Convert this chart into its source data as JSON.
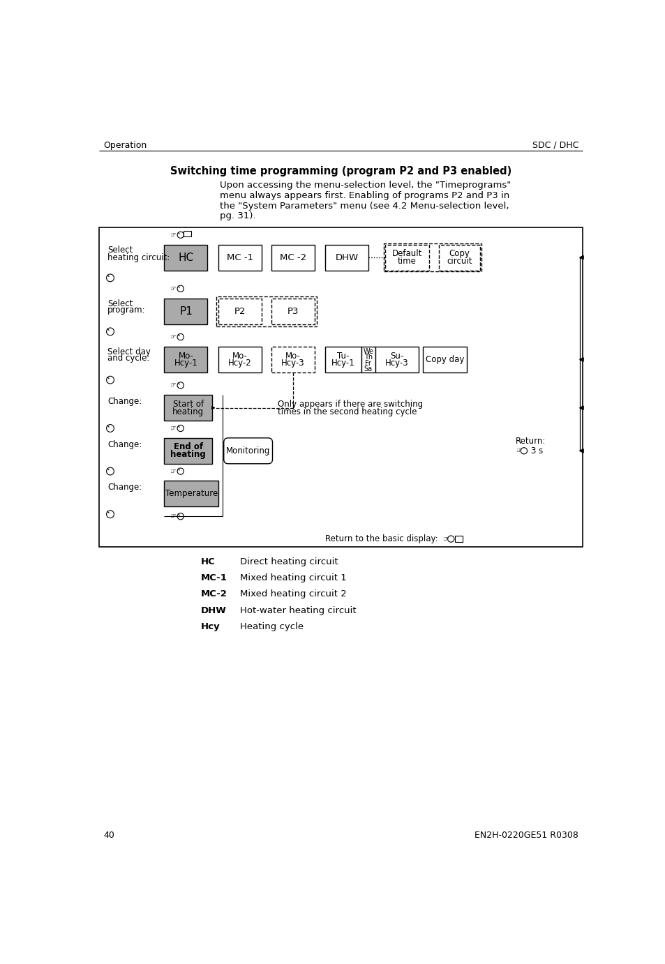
{
  "page_title_left": "Operation",
  "page_title_right": "SDC / DHC",
  "section_title": "Switching time programming (program P2 and P3 enabled)",
  "body_line1": "Upon accessing the menu-selection level, the \"Timeprograms\"",
  "body_line2": "menu always appears first. Enabling of programs P2 and P3 in",
  "body_line3": "the \"System Parameters\" menu (see 4.2 Menu-selection level,",
  "body_line4": "pg. 31).",
  "page_number": "40",
  "doc_number": "EN2H-0220GE51 R0308",
  "bg_color": "#ffffff",
  "gray_fill": "#aaaaaa",
  "white_fill": "#ffffff",
  "legend_items": [
    {
      "code": "HC",
      "desc": "Direct heating circuit"
    },
    {
      "code": "MC-1",
      "desc": "Mixed heating circuit 1"
    },
    {
      "code": "MC-2",
      "desc": "Mixed heating circuit 2"
    },
    {
      "code": "DHW",
      "desc": "Hot-water heating circuit"
    },
    {
      "code": "Hcy",
      "desc": "Heating cycle"
    }
  ]
}
